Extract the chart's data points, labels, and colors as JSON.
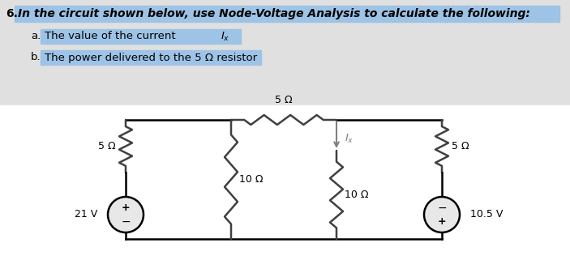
{
  "title_bold_number": "6.",
  "title_bold_italic": "In the circuit shown below, use Node-Voltage Analysis to calculate the following:",
  "item_a_text": "a.  The value of the current ",
  "item_a_math": "I_x",
  "item_b_text": "b.  The power delivered to the 5 Ω resistor",
  "highlight_color": "#9dc3e6",
  "bg_top_color": "#e0e0e0",
  "bg_white": "#ffffff",
  "wire_color": "#000000",
  "resistor_color": "#404040",
  "arrow_color": "#808080",
  "res_top_label": "5 Ω",
  "res_left_label": "5 Ω",
  "res_mid1_label": "10 Ω",
  "res_mid2_label": "10 Ω",
  "res_right_label": "5 Ω",
  "src_left_label": "21 V",
  "src_right_label": "10.5 V",
  "current_label": "I_x",
  "lw": 1.8
}
